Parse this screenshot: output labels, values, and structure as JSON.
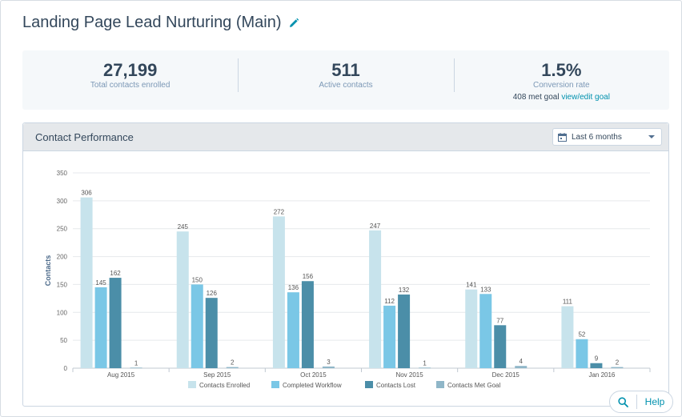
{
  "header": {
    "title": "Landing Page Lead Nurturing (Main)"
  },
  "stats": [
    {
      "value": "27,199",
      "label": "Total contacts enrolled"
    },
    {
      "value": "511",
      "label": "Active contacts"
    },
    {
      "value": "1.5%",
      "label": "Conversion rate",
      "sub_text": "408 met goal",
      "sub_link": "view/edit goal"
    }
  ],
  "panel": {
    "title": "Contact Performance",
    "range_select": {
      "selected": "Last 6 months",
      "icon": "calendar-icon"
    }
  },
  "help": {
    "label": "Help",
    "icon": "search-icon"
  },
  "colors": {
    "enrolled": "#c7e3ec",
    "completed": "#7ac7e6",
    "lost": "#4b8ea8",
    "goal": "#8fb6c8"
  },
  "chart_data": {
    "type": "bar",
    "categories": [
      "Aug 2015",
      "Sep 2015",
      "Oct 2015",
      "Nov 2015",
      "Dec 2015",
      "Jan 2016"
    ],
    "series": [
      {
        "name": "Contacts Enrolled",
        "values": [
          306,
          245,
          272,
          247,
          141,
          111
        ]
      },
      {
        "name": "Completed Workflow",
        "values": [
          145,
          150,
          136,
          112,
          133,
          52
        ]
      },
      {
        "name": "Contacts Lost",
        "values": [
          162,
          126,
          156,
          132,
          77,
          9
        ]
      },
      {
        "name": "Contacts Met Goal",
        "values": [
          1,
          2,
          3,
          1,
          4,
          2
        ]
      }
    ],
    "ylabel": "Contacts",
    "ylim": [
      0,
      350
    ],
    "yticks": [
      0,
      50,
      100,
      150,
      200,
      250,
      300,
      350
    ],
    "grid": true,
    "legend": "bottom"
  }
}
